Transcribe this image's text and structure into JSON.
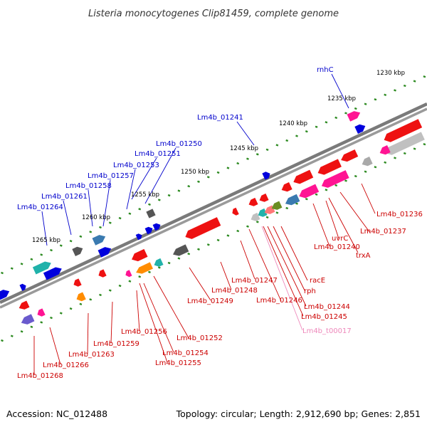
{
  "title": "Listeria monocytogenes Clip81459, complete genome",
  "accession": "Accession: NC_012488",
  "topology": "Topology: circular; Length: 2,912,690 bp; Genes: 2,851",
  "colors": {
    "forward_label": "#0000cc",
    "reverse_label": "#cc0000",
    "trna_label": "#ee88bb",
    "backbone": "#808080",
    "tick": "#2e8b22"
  },
  "kbp_ticks": [
    "1230 kbp",
    "1235 kbp",
    "1240 kbp",
    "1245 kbp",
    "1250 kbp",
    "1255 kbp",
    "1260 kbp",
    "1265 kbp"
  ],
  "forward_labels": [
    "rnhC",
    "Lm4b_01241",
    "Lm4b_01250",
    "Lm4b_01251",
    "Lm4b_01253",
    "Lm4b_01257",
    "Lm4b_01258",
    "Lm4b_01261",
    "Lm4b_01264"
  ],
  "reverse_labels": [
    "Lm4b_01236",
    "Lm4b_01237",
    "uvrC",
    "Lm4b_01240",
    "trxA",
    "racE",
    "rph",
    "Lm4b_01244",
    "Lm4b_01245",
    "Lm4b_01246",
    "Lm4b_01247",
    "Lm4b_01248",
    "Lm4b_01249",
    "Lm4b_01252",
    "Lm4b_01254",
    "Lm4b_01255",
    "Lm4b_01256",
    "Lm4b_01259",
    "Lm4b_01263",
    "Lm4b_01266",
    "Lm4b_01268"
  ],
  "trna_labels": [
    "Lm4b_t00017"
  ]
}
